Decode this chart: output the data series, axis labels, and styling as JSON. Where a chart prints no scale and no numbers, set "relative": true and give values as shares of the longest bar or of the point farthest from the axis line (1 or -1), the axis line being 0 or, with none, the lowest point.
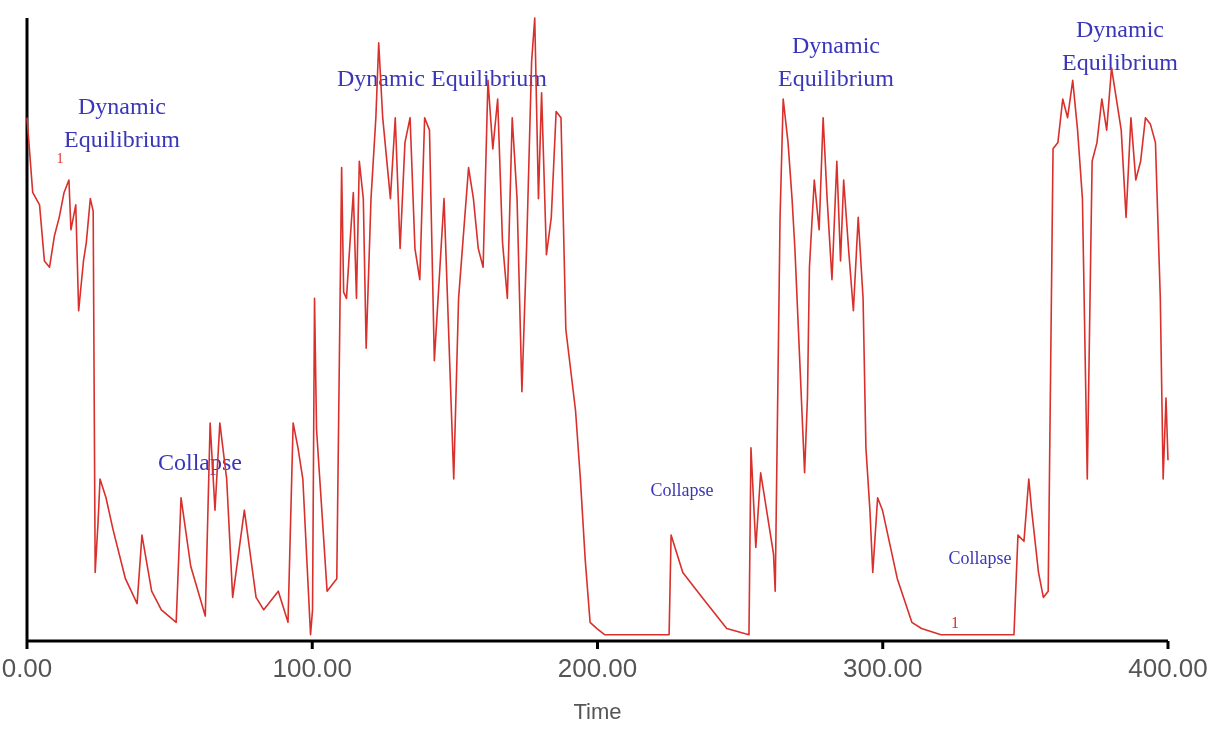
{
  "chart_data": {
    "type": "line",
    "relative": true,
    "xlabel": "Time",
    "xlim": [
      0,
      400
    ],
    "xticks": [
      {
        "value": 0,
        "label": "0.00"
      },
      {
        "value": 100,
        "label": "100.00"
      },
      {
        "value": 200,
        "label": "200.00"
      },
      {
        "value": 300,
        "label": "300.00"
      },
      {
        "value": 400,
        "label": "400.00"
      }
    ],
    "grid": false,
    "marker": "none",
    "line_style": "solid",
    "series": [
      {
        "color": "#d9302c",
        "x": [
          0,
          2.0,
          4.4,
          6.1,
          7.9,
          9.6,
          11.3,
          13.0,
          14.7,
          15.4,
          17.1,
          18.1,
          19.8,
          20.8,
          22.2,
          23.2,
          23.9,
          24.9,
          25.6,
          27.7,
          30.1,
          34.5,
          38.6,
          40.3,
          43.7,
          47.1,
          52.3,
          54.0,
          57.4,
          62.5,
          64.2,
          65.9,
          67.6,
          70.0,
          72.1,
          76.2,
          80.3,
          83.0,
          88.1,
          91.5,
          93.3,
          95.0,
          96.7,
          99.4,
          100.1,
          100.8,
          101.5,
          105.2,
          108.6,
          110.3,
          111.0,
          112.0,
          113.1,
          114.4,
          115.5,
          116.5,
          117.9,
          118.9,
          120.6,
          122.3,
          123.3,
          124.7,
          127.4,
          129.1,
          130.8,
          132.5,
          134.3,
          136.0,
          137.7,
          139.4,
          141.1,
          142.8,
          146.2,
          149.6,
          151.3,
          154.8,
          156.5,
          158.2,
          159.9,
          161.6,
          163.3,
          165.0,
          166.7,
          168.4,
          170.1,
          171.8,
          173.5,
          175.2,
          176.9,
          178.0,
          179.3,
          180.4,
          182.1,
          183.8,
          185.5,
          187.2,
          188.9,
          192.3,
          194.0,
          195.7,
          197.4,
          199.8,
          202.6,
          209.4,
          225.1,
          225.8,
          229.9,
          236.7,
          245.3,
          253.1,
          253.8,
          255.5,
          257.2,
          261.7,
          262.3,
          264.0,
          265.1,
          266.8,
          268.2,
          269.2,
          270.9,
          272.6,
          273.6,
          274.3,
          276.0,
          277.7,
          279.1,
          280.5,
          282.2,
          283.9,
          285.2,
          286.3,
          288.0,
          289.7,
          291.4,
          293.1,
          294.1,
          295.5,
          296.5,
          298.2,
          299.9,
          305.1,
          310.2,
          313.6,
          320.4,
          346.0,
          347.4,
          349.5,
          351.2,
          352.2,
          354.6,
          356.3,
          358.0,
          359.7,
          361.4,
          363.1,
          364.8,
          366.6,
          368.3,
          370.0,
          371.7,
          373.4,
          375.1,
          376.8,
          378.5,
          380.2,
          381.9,
          383.6,
          385.3,
          387.0,
          388.7,
          390.4,
          392.1,
          393.8,
          395.6,
          397.3,
          398.3,
          399.3,
          400.0
        ],
        "values": [
          0.84,
          0.72,
          0.7,
          0.61,
          0.6,
          0.65,
          0.68,
          0.72,
          0.74,
          0.66,
          0.7,
          0.53,
          0.61,
          0.64,
          0.71,
          0.69,
          0.11,
          0.19,
          0.26,
          0.23,
          0.18,
          0.1,
          0.06,
          0.17,
          0.08,
          0.05,
          0.03,
          0.23,
          0.12,
          0.04,
          0.35,
          0.21,
          0.35,
          0.26,
          0.07,
          0.21,
          0.07,
          0.05,
          0.08,
          0.03,
          0.35,
          0.31,
          0.26,
          0.01,
          0.05,
          0.55,
          0.34,
          0.08,
          0.1,
          0.76,
          0.56,
          0.55,
          0.63,
          0.72,
          0.55,
          0.77,
          0.71,
          0.47,
          0.71,
          0.84,
          0.96,
          0.84,
          0.71,
          0.84,
          0.63,
          0.8,
          0.84,
          0.63,
          0.58,
          0.84,
          0.82,
          0.45,
          0.71,
          0.26,
          0.55,
          0.76,
          0.71,
          0.63,
          0.6,
          0.9,
          0.79,
          0.87,
          0.64,
          0.55,
          0.84,
          0.71,
          0.4,
          0.64,
          0.93,
          1,
          0.71,
          0.88,
          0.62,
          0.68,
          0.85,
          0.84,
          0.5,
          0.37,
          0.26,
          0.13,
          0.03,
          0.02,
          0.01,
          0.01,
          0.01,
          0.17,
          0.11,
          0.07,
          0.02,
          0.01,
          0.31,
          0.15,
          0.27,
          0.14,
          0.08,
          0.68,
          0.87,
          0.8,
          0.71,
          0.63,
          0.45,
          0.27,
          0.39,
          0.6,
          0.74,
          0.66,
          0.84,
          0.71,
          0.58,
          0.77,
          0.61,
          0.74,
          0.63,
          0.53,
          0.68,
          0.55,
          0.31,
          0.21,
          0.11,
          0.23,
          0.21,
          0.1,
          0.03,
          0.02,
          0.01,
          0.01,
          0.17,
          0.16,
          0.26,
          0.21,
          0.11,
          0.07,
          0.08,
          0.79,
          0.8,
          0.87,
          0.84,
          0.9,
          0.82,
          0.71,
          0.26,
          0.77,
          0.8,
          0.87,
          0.82,
          0.92,
          0.87,
          0.82,
          0.68,
          0.84,
          0.74,
          0.77,
          0.84,
          0.83,
          0.8,
          0.55,
          0.26,
          0.39,
          0.29
        ]
      }
    ],
    "annotations": [
      "Dynamic Equilibrium",
      "Dynamic Equilibrium",
      "Dynamic Equilibrium",
      "Dynamic Equilibrium",
      "Collapse",
      "Collapse",
      "Collapse",
      "1",
      "1"
    ]
  }
}
